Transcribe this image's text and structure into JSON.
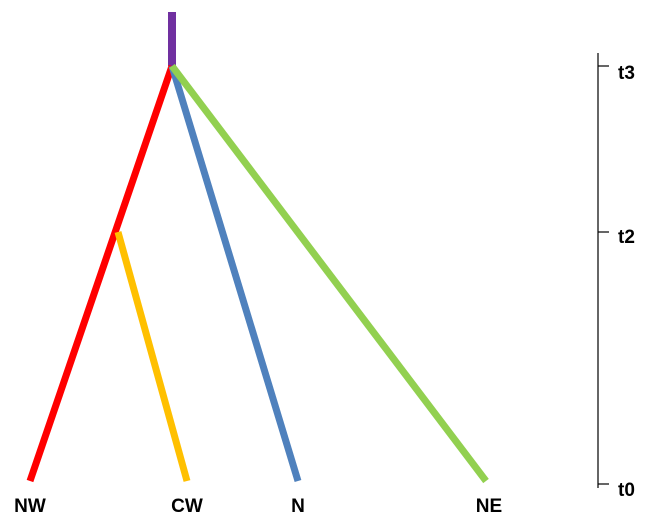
{
  "tree": {
    "root_stem": {
      "color": "#7030a0"
    },
    "branches": [
      {
        "name": "NW",
        "color": "#ff0000"
      },
      {
        "name": "CW",
        "color": "#ffc000"
      },
      {
        "name": "N",
        "color": "#4f81bd"
      },
      {
        "name": "NE",
        "color": "#92d050"
      }
    ]
  },
  "leaves": [
    "NW",
    "CW",
    "N",
    "NE"
  ],
  "time_axis": {
    "ticks": [
      "t3",
      "t2",
      "t0"
    ],
    "line_color": "#000000"
  }
}
